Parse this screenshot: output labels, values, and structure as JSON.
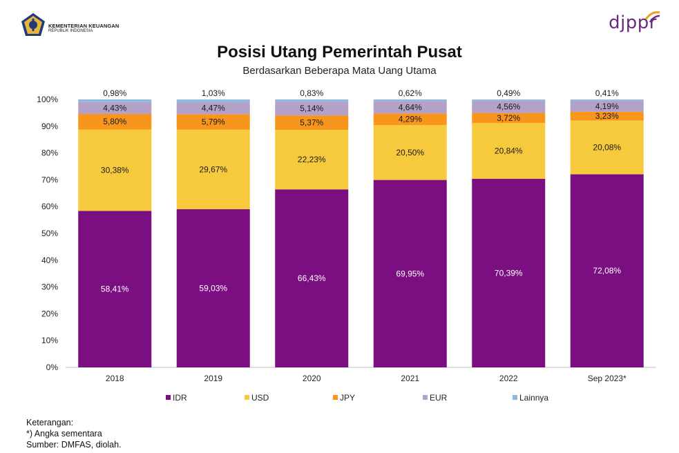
{
  "header": {
    "org_line1": "KEMENTERIAN KEUANGAN",
    "org_line2": "REPUBLIK INDONESIA",
    "brand": "djppr",
    "logo_icon": "ministry-emblem-icon"
  },
  "chart_data": {
    "type": "bar",
    "stacked": true,
    "title": "Posisi Utang Pemerintah Pusat",
    "subtitle": "Berdasarkan Beberapa Mata Uang Utama",
    "categories": [
      "2018",
      "2019",
      "2020",
      "2021",
      "2022",
      "Sep 2023*"
    ],
    "ylim": [
      0,
      100
    ],
    "yticks": [
      "0%",
      "10%",
      "20%",
      "30%",
      "40%",
      "50%",
      "60%",
      "70%",
      "80%",
      "90%",
      "100%"
    ],
    "legend_position": "bottom",
    "series": [
      {
        "name": "IDR",
        "color": "#7b0f82",
        "values": [
          58.41,
          59.03,
          66.43,
          69.95,
          70.39,
          72.08
        ],
        "labels": [
          "58,41%",
          "59,03%",
          "66,43%",
          "69,95%",
          "70,39%",
          "72,08%"
        ]
      },
      {
        "name": "USD",
        "color": "#f7ca3e",
        "values": [
          30.38,
          29.67,
          22.23,
          20.5,
          20.84,
          20.08
        ],
        "labels": [
          "30,38%",
          "29,67%",
          "22,23%",
          "20,50%",
          "20,84%",
          "20,08%"
        ]
      },
      {
        "name": "JPY",
        "color": "#f7951d",
        "values": [
          5.8,
          5.79,
          5.37,
          4.29,
          3.72,
          3.23
        ],
        "labels": [
          "5,80%",
          "5,79%",
          "5,37%",
          "4,29%",
          "3,72%",
          "3,23%"
        ]
      },
      {
        "name": "EUR",
        "color": "#b4a1c7",
        "values": [
          4.43,
          4.47,
          5.14,
          4.64,
          4.56,
          4.19
        ],
        "labels": [
          "4,43%",
          "4,47%",
          "5,14%",
          "4,64%",
          "4,56%",
          "4,19%"
        ]
      },
      {
        "name": "Lainnya",
        "color": "#8fb8df",
        "values": [
          0.98,
          1.03,
          0.83,
          0.62,
          0.49,
          0.41
        ],
        "labels": [
          "0,98%",
          "1,03%",
          "0,83%",
          "0,62%",
          "0,49%",
          "0,41%"
        ]
      }
    ]
  },
  "notes": {
    "heading": "Keterangan:",
    "line1": "*) Angka sementara",
    "line2": "Sumber: DMFAS, diolah."
  }
}
